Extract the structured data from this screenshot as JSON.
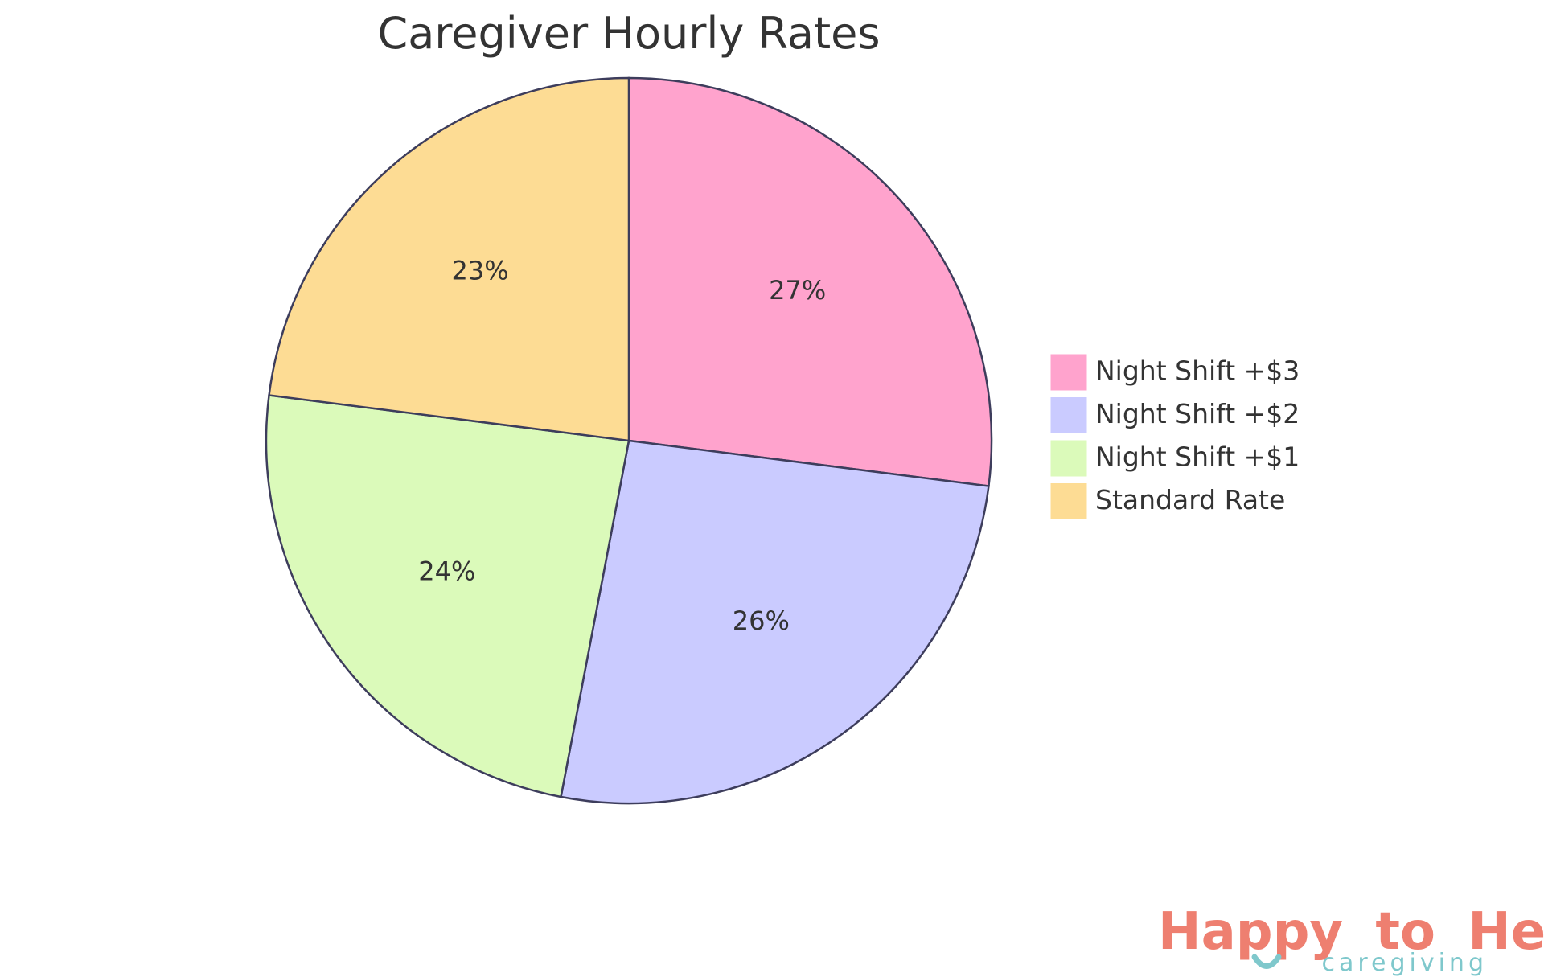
{
  "chart_data": {
    "type": "pie",
    "title": "Caregiver Hourly Rates",
    "series": [
      {
        "name": "Night Shift +$3",
        "value": 27,
        "label": "27%",
        "color": "#FFA3CD"
      },
      {
        "name": "Night Shift +$2",
        "value": 26,
        "label": "26%",
        "color": "#CACBFF"
      },
      {
        "name": "Night Shift +$1",
        "value": 24,
        "label": "24%",
        "color": "#DBFABA"
      },
      {
        "name": "Standard Rate",
        "value": 23,
        "label": "23%",
        "color": "#FDDC94"
      }
    ],
    "start_angle": "12 o'clock",
    "direction": "clockwise",
    "legend_position": "right",
    "slice_border_color": "#3D3D5C"
  },
  "logo": {
    "word_happy": "Happy",
    "word_to": "to",
    "word_help": "Help",
    "tagline": "caregiving",
    "coral_color": "#EE7F70",
    "teal_color": "#7FC8CC"
  }
}
